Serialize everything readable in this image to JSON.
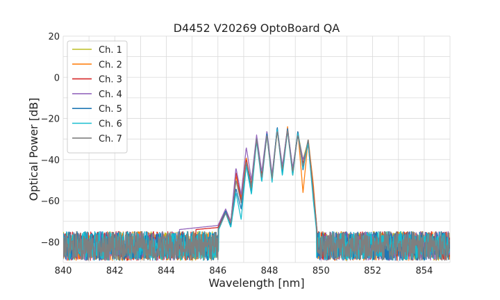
{
  "chart_data": {
    "type": "line",
    "title": "D4452 V20269 OptoBoard QA",
    "xlabel": "Wavelength [nm]",
    "ylabel": "Optical Power [dB]",
    "xlim": [
      840,
      855
    ],
    "ylim": [
      -90,
      20
    ],
    "xticks": [
      840,
      842,
      844,
      846,
      848,
      850,
      852,
      854
    ],
    "yticks": [
      -80,
      -60,
      -40,
      -20,
      0,
      20
    ],
    "xtick_labels": [
      "840",
      "842",
      "844",
      "846",
      "848",
      "850",
      "852",
      "854"
    ],
    "ytick_labels": [
      "−80",
      "−60",
      "−40",
      "−20",
      "0",
      "20"
    ],
    "grid": true,
    "legend_position": "top-left",
    "noise_floor": -80,
    "series": [
      {
        "name": "Ch. 1",
        "color": "#bcbd22",
        "x": [
          840,
          846.0,
          846.3,
          846.5,
          846.7,
          846.9,
          847.1,
          847.3,
          847.5,
          847.7,
          847.9,
          848.1,
          848.3,
          848.5,
          848.7,
          848.9,
          849.1,
          849.3,
          849.5,
          849.7,
          849.85,
          850.0,
          855
        ],
        "y": [
          -80,
          -74,
          -65,
          -72,
          -50,
          -60,
          -40,
          -55,
          -30,
          -48,
          -28,
          -50,
          -26,
          -45,
          -25,
          -46,
          -27,
          -40,
          -31,
          -55,
          -75,
          -80,
          -80
        ]
      },
      {
        "name": "Ch. 2",
        "color": "#ff7f0e",
        "x": [
          840,
          846.0,
          846.3,
          846.5,
          846.7,
          846.9,
          847.1,
          847.3,
          847.5,
          847.7,
          847.9,
          848.1,
          848.3,
          848.5,
          848.7,
          848.9,
          849.1,
          849.3,
          849.5,
          849.7,
          849.85,
          850.0,
          855
        ],
        "y": [
          -80,
          -74,
          -66,
          -71,
          -48,
          -58,
          -39,
          -54,
          -29,
          -50,
          -27,
          -49,
          -25,
          -46,
          -24,
          -48,
          -26,
          -56,
          -30,
          -52,
          -76,
          -80,
          -80
        ]
      },
      {
        "name": "Ch. 3",
        "color": "#d62728",
        "x": [
          840,
          846.0,
          846.3,
          846.5,
          846.7,
          846.9,
          847.1,
          847.3,
          847.5,
          847.7,
          847.9,
          848.1,
          848.3,
          848.5,
          848.7,
          848.9,
          849.1,
          849.3,
          849.5,
          849.7,
          849.85,
          850.0,
          855
        ],
        "y": [
          -80,
          -73,
          -65,
          -70,
          -46,
          -60,
          -40,
          -52,
          -29,
          -47,
          -28,
          -48,
          -25,
          -44,
          -25,
          -45,
          -27,
          -42,
          -31,
          -55,
          -75,
          -80,
          -80
        ]
      },
      {
        "name": "Ch. 4",
        "color": "#9467bd",
        "x": [
          840,
          846.0,
          846.3,
          846.5,
          846.7,
          846.9,
          847.1,
          847.3,
          847.5,
          847.7,
          847.9,
          848.1,
          848.3,
          848.5,
          848.7,
          848.9,
          849.1,
          849.3,
          849.5,
          849.7,
          849.85,
          850.0,
          855
        ],
        "y": [
          -80,
          -72,
          -64,
          -70,
          -44,
          -57,
          -34,
          -50,
          -28,
          -46,
          -26,
          -47,
          -25,
          -43,
          -25,
          -44,
          -28,
          -40,
          -33,
          -57,
          -77,
          -80,
          -80
        ]
      },
      {
        "name": "Ch. 5",
        "color": "#1f77b4",
        "x": [
          840,
          846.0,
          846.3,
          846.5,
          846.7,
          846.9,
          847.1,
          847.3,
          847.5,
          847.7,
          847.9,
          848.1,
          848.3,
          848.5,
          848.7,
          848.9,
          849.1,
          849.3,
          849.5,
          849.7,
          849.85,
          850.0,
          855
        ],
        "y": [
          -80,
          -74,
          -65,
          -72,
          -54,
          -64,
          -42,
          -56,
          -30,
          -50,
          -27,
          -50,
          -24,
          -47,
          -25,
          -47,
          -26,
          -45,
          -31,
          -58,
          -76,
          -80,
          -80
        ]
      },
      {
        "name": "Ch. 6",
        "color": "#17becf",
        "x": [
          840,
          846.0,
          846.3,
          846.5,
          846.7,
          846.9,
          847.1,
          847.3,
          847.5,
          847.7,
          847.9,
          848.1,
          848.3,
          848.5,
          848.7,
          848.9,
          849.1,
          849.3,
          849.5,
          849.7,
          849.85,
          850.0,
          855
        ],
        "y": [
          -80,
          -75,
          -66,
          -73,
          -56,
          -69,
          -43,
          -57,
          -31,
          -51,
          -28,
          -51,
          -25,
          -48,
          -26,
          -48,
          -27,
          -44,
          -32,
          -60,
          -78,
          -80,
          -80
        ]
      },
      {
        "name": "Ch. 7",
        "color": "#7f7f7f",
        "x": [
          840,
          846.0,
          846.3,
          846.5,
          846.7,
          846.9,
          847.1,
          847.3,
          847.5,
          847.7,
          847.9,
          848.1,
          848.3,
          848.5,
          848.7,
          848.9,
          849.1,
          849.3,
          849.5,
          849.7,
          849.85,
          850.0,
          855
        ],
        "y": [
          -80,
          -74,
          -66,
          -71,
          -50,
          -61,
          -41,
          -53,
          -30,
          -49,
          -28,
          -49,
          -26,
          -45,
          -26,
          -46,
          -28,
          -43,
          -30,
          -56,
          -76,
          -80,
          -80
        ]
      }
    ]
  }
}
